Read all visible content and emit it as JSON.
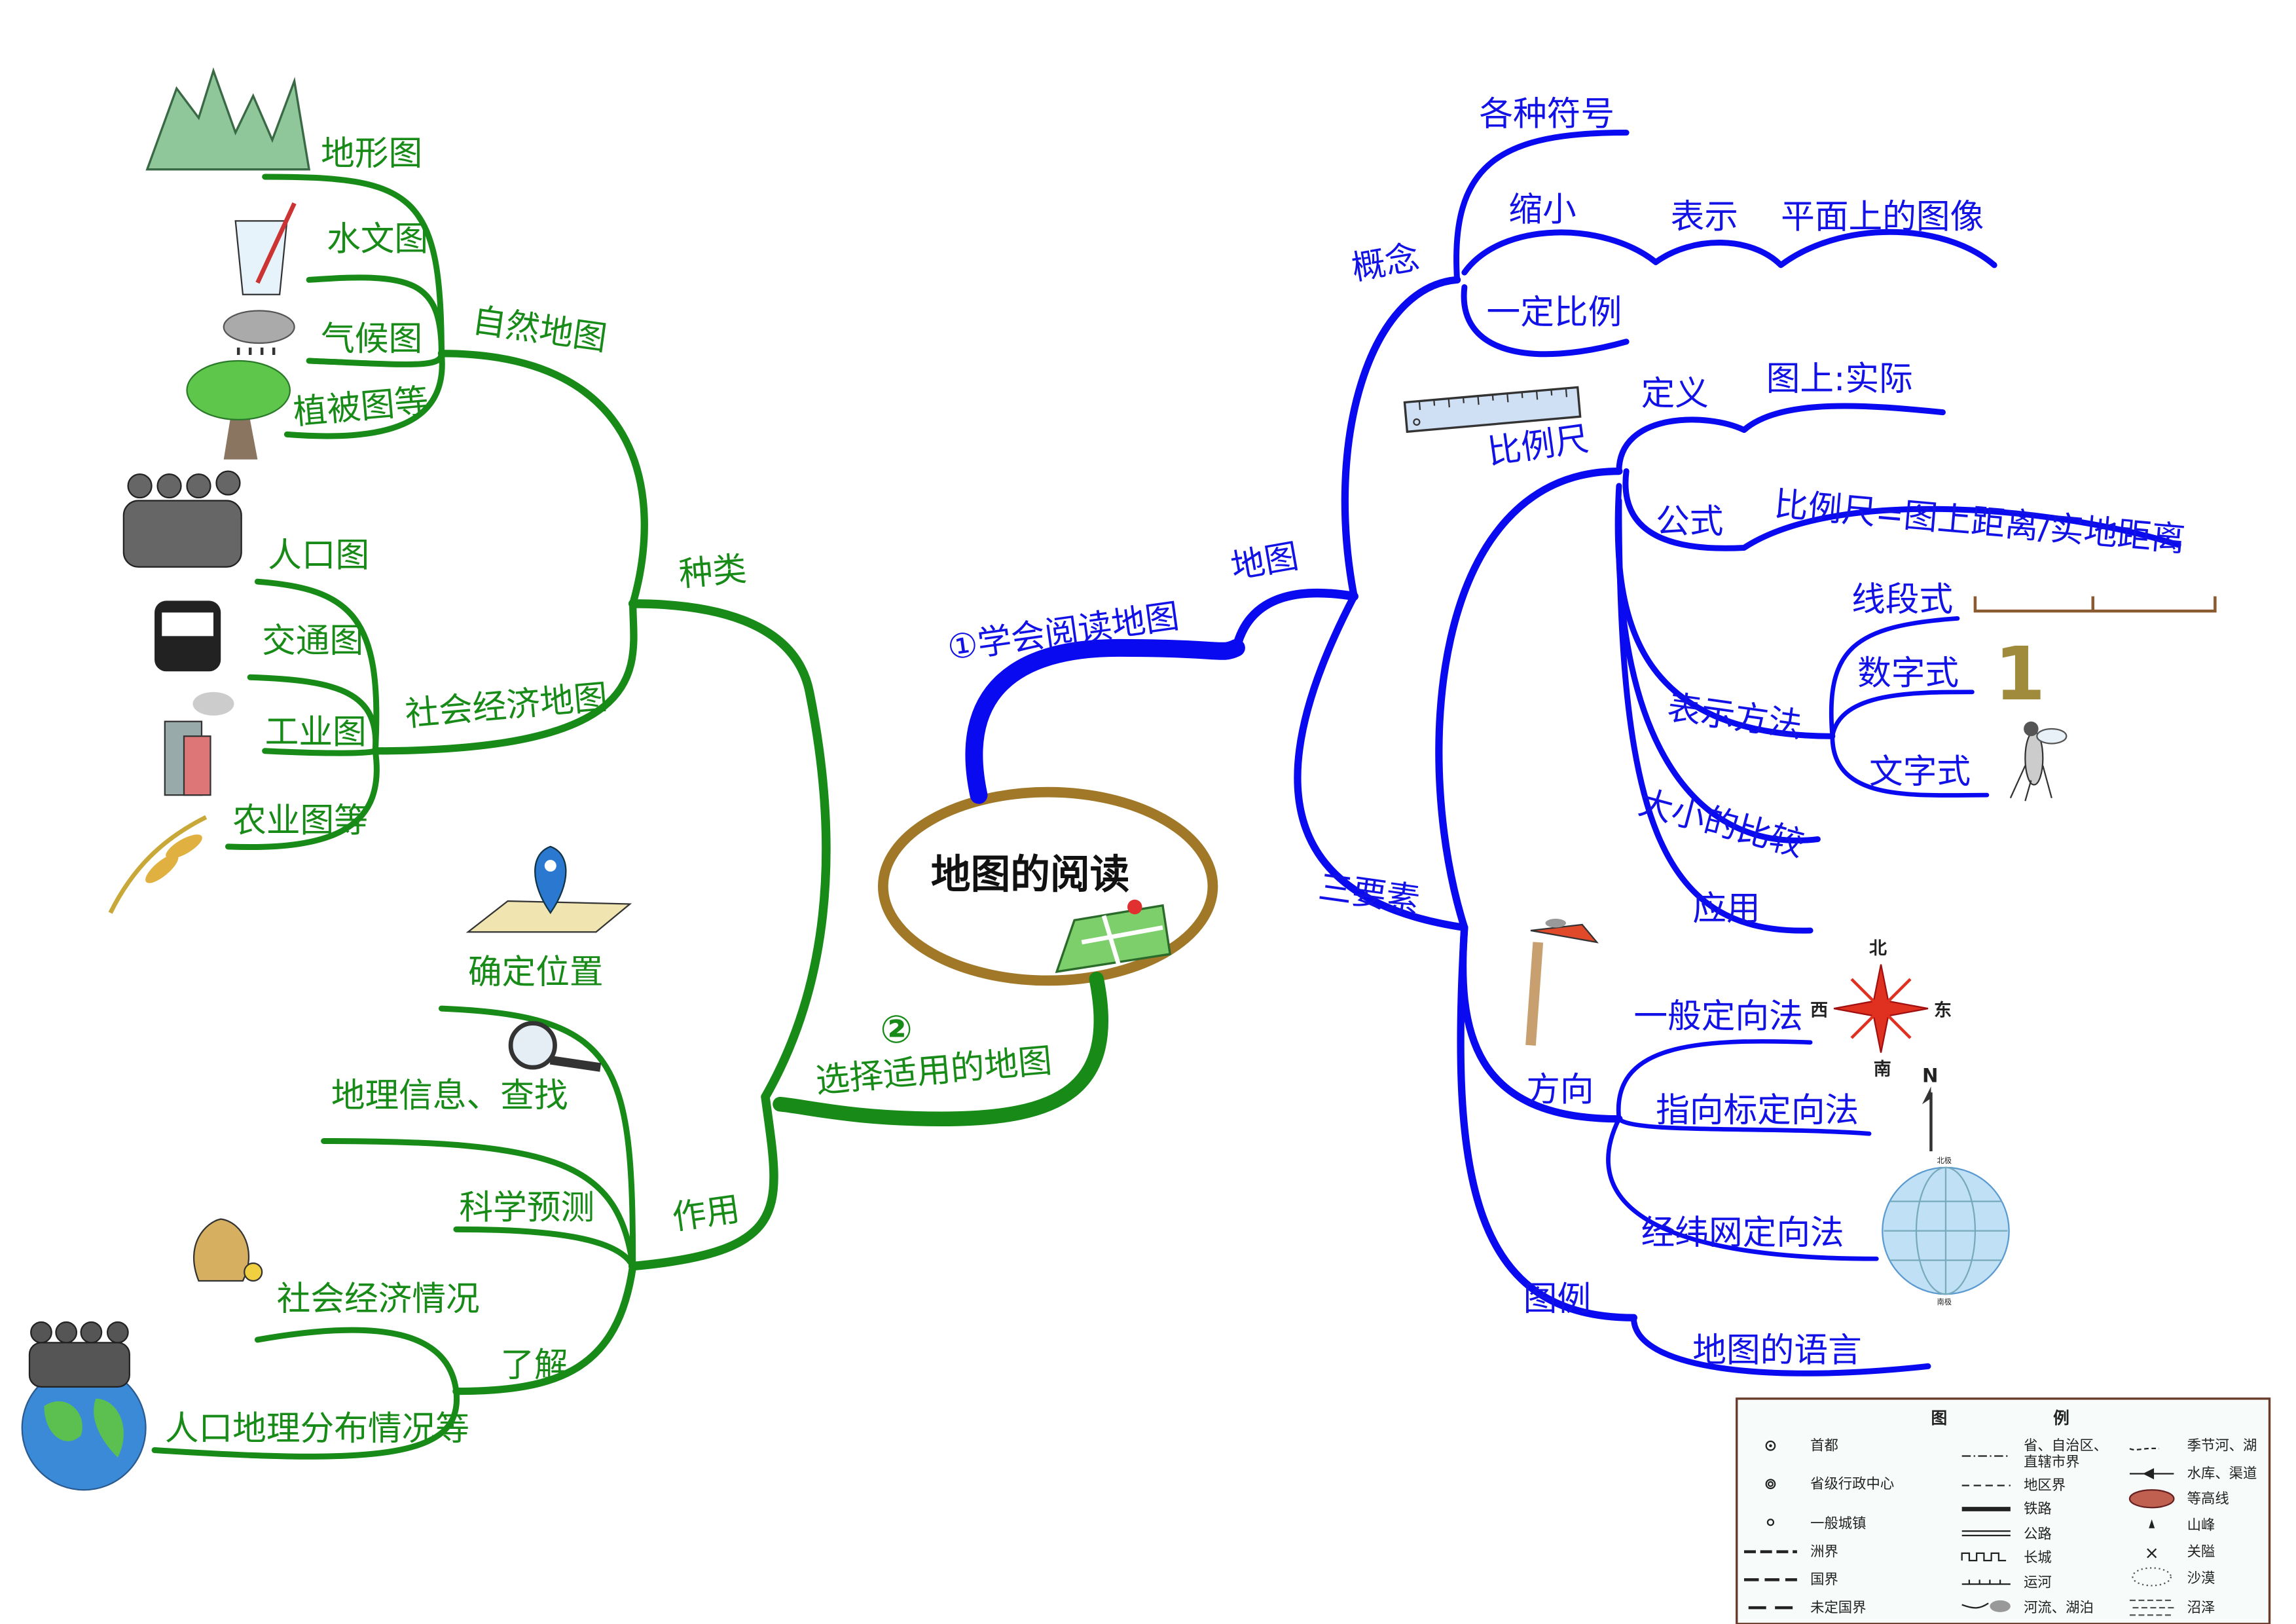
{
  "center": {
    "title": "地图的阅读"
  },
  "colors": {
    "left_branch": "#178a17",
    "right_branch": "#0a0af0",
    "center_ring": "#a07828",
    "number_one": "#a08a3c"
  },
  "right": {
    "main": "①学会阅读地图",
    "sub": "地图",
    "concept": {
      "label": "概念",
      "symbols": "各种符号",
      "shrink": "缩小",
      "represent": "表示",
      "plane_image": "平面上的图像",
      "ratio": "一定比例"
    },
    "three_elements": "三要素",
    "scale": {
      "label": "比例尺",
      "definition": "定义",
      "definition_value": "图上:实际",
      "formula": "公式",
      "formula_value": "比例尺=图上距离/实地距离",
      "methods": "表示方法",
      "line": "线段式",
      "number": "数字式",
      "number_glyph": "1",
      "text": "文字式",
      "compare": "大小的比较",
      "use": "应用"
    },
    "direction": {
      "label": "方向",
      "general": "一般定向法",
      "pointer": "指向标定向法",
      "grid": "经纬网定向法",
      "compass": {
        "north": "北",
        "south": "南",
        "east": "东",
        "west": "西"
      },
      "north_arrow": "N"
    },
    "legend_branch": {
      "label": "图例",
      "language": "地图的语言"
    }
  },
  "left": {
    "main": "选择适用的地图",
    "main_number": "②",
    "types": {
      "label": "种类",
      "natural": {
        "label": "自然地图",
        "items": [
          "地形图",
          "水文图",
          "气候图",
          "植被图等"
        ]
      },
      "social": {
        "label": "社会经济地图",
        "items": [
          "人口图",
          "交通图",
          "工业图",
          "农业图等"
        ]
      }
    },
    "uses": {
      "label": "作用",
      "items": [
        "确定位置",
        "地理信息、查找",
        "科学预测"
      ],
      "understand": {
        "label": "了解",
        "items": [
          "社会经济情况",
          "人口地理分布情况等"
        ]
      }
    }
  },
  "legend_box": {
    "title_left": "图",
    "title_right": "例",
    "col1": [
      "首都",
      "省级行政中心",
      "一般城镇",
      "洲界",
      "国界",
      "未定国界"
    ],
    "col2": [
      "省、自治区、",
      "直辖市界",
      "地区界",
      "铁路",
      "公路",
      "长城",
      "运河",
      "河流、湖泊"
    ],
    "col3": [
      "季节河、湖",
      "水库、渠道",
      "等高线",
      "山峰",
      "关隘",
      "沙漠",
      "沼泽"
    ]
  },
  "globe_labels": {
    "top": "北极",
    "bottom": "南极"
  }
}
